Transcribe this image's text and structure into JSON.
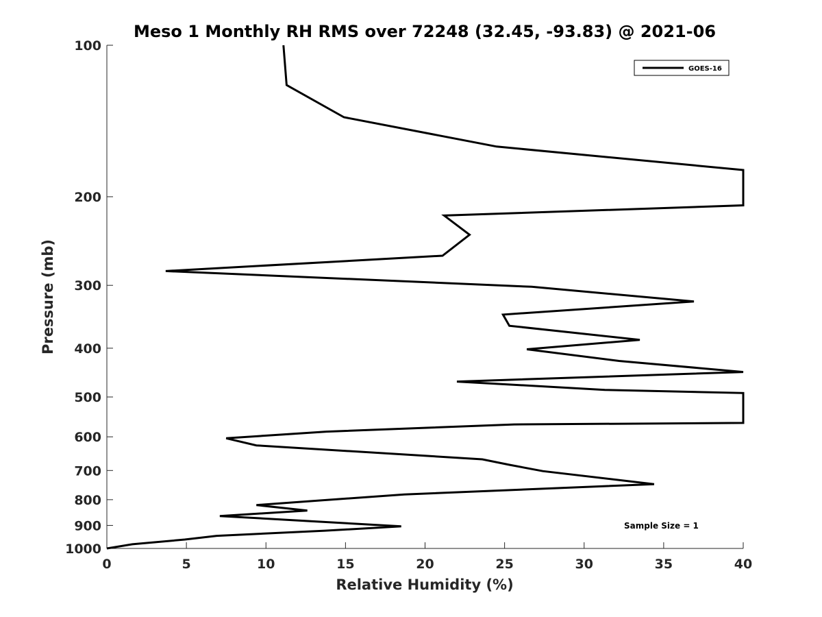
{
  "chart_data": {
    "type": "line",
    "title": "Meso 1 Monthly RH RMS over 72248 (32.45, -93.83) @ 2021-06",
    "xlabel": "Relative Humidity (%)",
    "ylabel": "Pressure (mb)",
    "xlim": [
      0,
      40
    ],
    "ylim": [
      100,
      1000
    ],
    "y_scale": "log",
    "y_reversed": true,
    "x_ticks": [
      0,
      5,
      10,
      15,
      20,
      25,
      30,
      35,
      40
    ],
    "x_tick_labels": [
      "0",
      "5",
      "10",
      "15",
      "20",
      "25",
      "30",
      "35",
      "40"
    ],
    "y_ticks": [
      100,
      200,
      300,
      400,
      500,
      600,
      700,
      800,
      900,
      1000
    ],
    "y_tick_labels": [
      "100",
      "200",
      "300",
      "400",
      "500",
      "600",
      "700",
      "800",
      "900",
      "1000"
    ],
    "grid": false,
    "legend_position": "top-right",
    "series": [
      {
        "name": "GOES-16",
        "color": "#000000",
        "x": [
          11.1,
          11.3,
          14.9,
          24.5,
          40,
          40,
          21.2,
          22.8,
          21.1,
          3.7,
          26.7,
          36.9,
          24.9,
          25.3,
          33.5,
          26.4,
          32.2,
          40,
          22.0,
          31.3,
          40,
          40,
          25.6,
          13.8,
          7.5,
          9.4,
          23.6,
          25.3,
          27.4,
          34.4,
          27.4,
          18.7,
          13.1,
          9.4,
          12.6,
          7.1,
          18.5,
          13.7,
          6.9,
          4.9,
          1.6,
          0
        ],
        "y": [
          100,
          120,
          139,
          159,
          177,
          208,
          218,
          238,
          262,
          281,
          302,
          323,
          343,
          361,
          385,
          402,
          424,
          446,
          466,
          484,
          491,
          563,
          567,
          586,
          604,
          624,
          665,
          682,
          702,
          745,
          761,
          781,
          804,
          820,
          841,
          862,
          904,
          922,
          944,
          960,
          981,
          1000
        ]
      }
    ],
    "annotations": [
      "Sample Size = 1"
    ]
  }
}
